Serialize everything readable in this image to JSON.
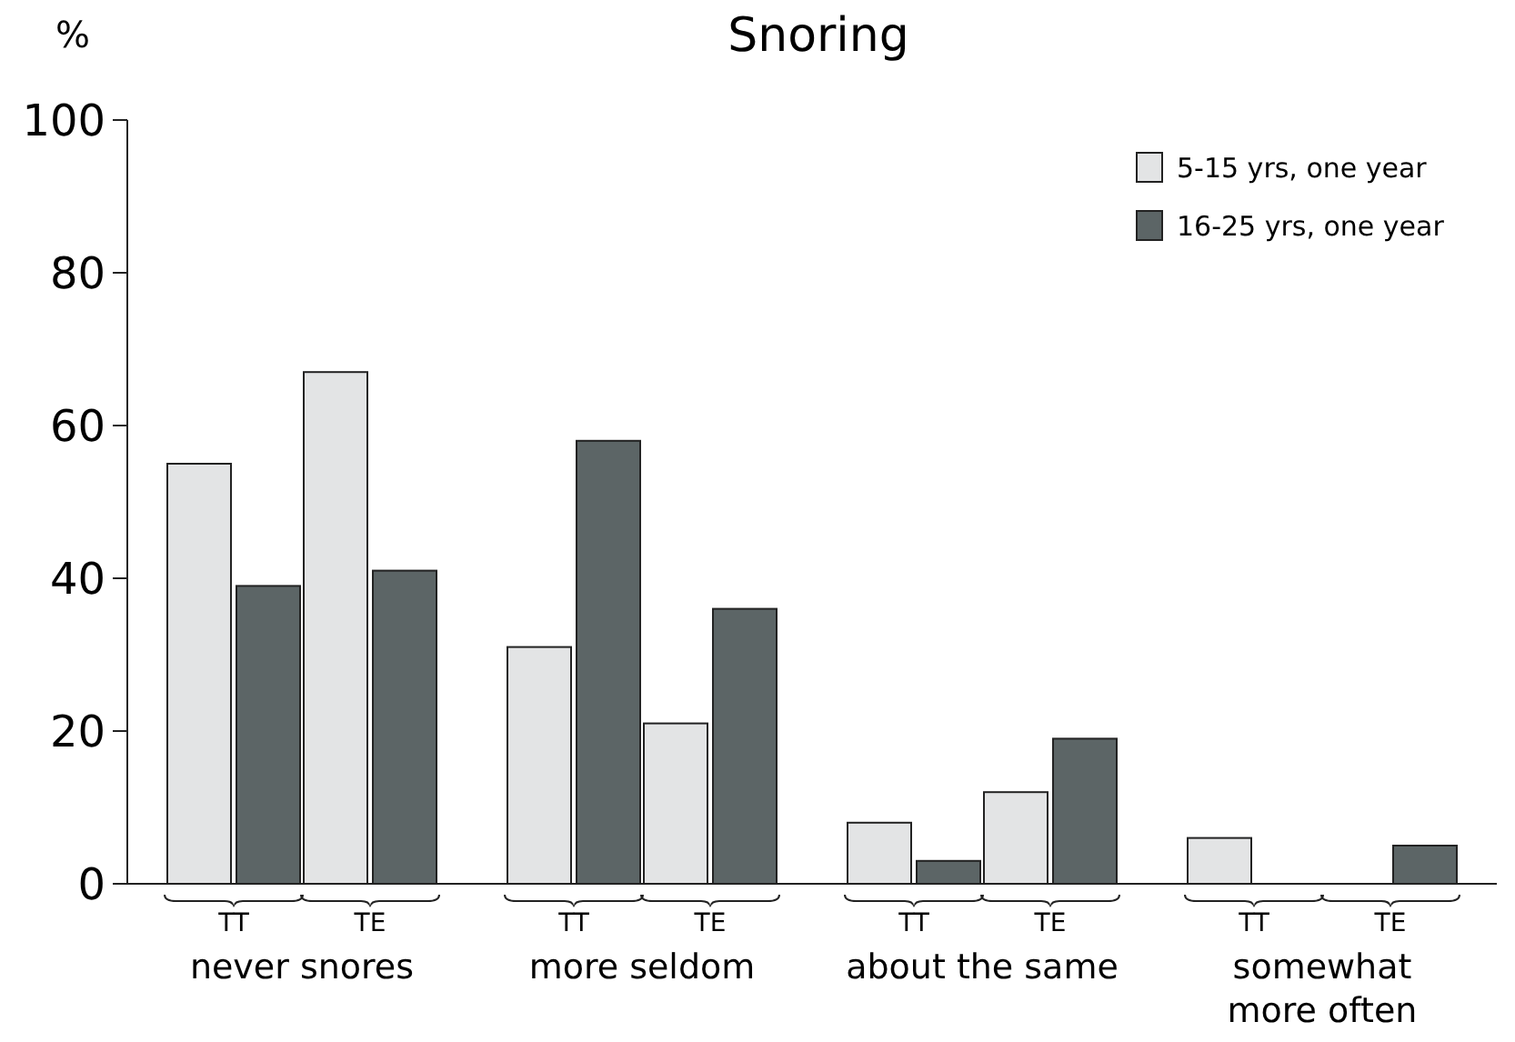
{
  "chart_data": {
    "type": "bar",
    "title": "Snoring",
    "ylabel": "%",
    "categories": [
      "TT",
      "TE",
      "TT",
      "TE",
      "TT",
      "TE",
      "TT",
      "TE"
    ],
    "series": [
      {
        "name": "5-15 yrs, one year",
        "color": "#e3e4e5",
        "values": [
          55,
          67,
          31,
          21,
          8,
          12,
          6,
          0
        ]
      },
      {
        "name": "16-25 yrs, one year",
        "color": "#5c6566",
        "values": [
          39,
          41,
          58,
          36,
          3,
          19,
          0,
          5
        ]
      }
    ],
    "annotations": [
      "never snores",
      "more seldom",
      "about the same",
      "somewhat more often"
    ],
    "ylim": [
      0,
      100
    ],
    "yticks": [
      0,
      20,
      40,
      60,
      80,
      100
    ],
    "grid": false,
    "legend": "top right"
  }
}
